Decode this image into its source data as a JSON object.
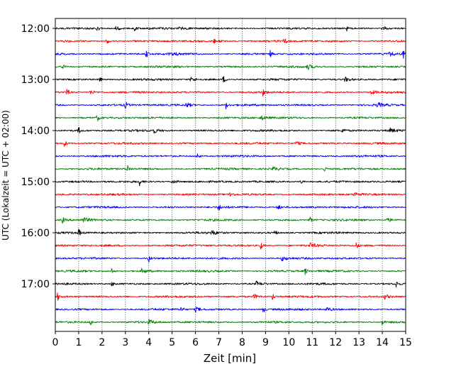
{
  "chart_data": {
    "type": "line",
    "xlabel": "Zeit  [min]",
    "ylabel": "UTC (Lokalzeit = UTC + 02:00)",
    "xlim": [
      0,
      15
    ],
    "x_ticks": [
      "0",
      "1",
      "2",
      "3",
      "4",
      "5",
      "6",
      "7",
      "8",
      "9",
      "10",
      "11",
      "12",
      "13",
      "14",
      "15"
    ],
    "y_ticks": [
      {
        "label": "12:00",
        "row": 0
      },
      {
        "label": "13:00",
        "row": 4
      },
      {
        "label": "14:00",
        "row": 8
      },
      {
        "label": "15:00",
        "row": 12
      },
      {
        "label": "16:00",
        "row": 16
      },
      {
        "label": "17:00",
        "row": 20
      }
    ],
    "grid": "vertical dotted",
    "row_colors": [
      "#000000",
      "#ff0000",
      "#0000ff",
      "#008000"
    ],
    "rows": [
      {
        "start": "12:00",
        "events": [
          1.8,
          2.6,
          3.4,
          5.3,
          12.5,
          14.0
        ]
      },
      {
        "start": "12:15",
        "events": [
          2.2,
          6.8,
          9.8
        ]
      },
      {
        "start": "12:30",
        "events": [
          3.9,
          4.9,
          9.2,
          14.3,
          14.9
        ]
      },
      {
        "start": "12:45",
        "events": [
          0.3,
          10.8
        ]
      },
      {
        "start": "13:00",
        "events": [
          1.9,
          5.8,
          7.2,
          12.4
        ]
      },
      {
        "start": "13:15",
        "events": [
          0.5,
          1.5,
          8.9,
          13.5
        ]
      },
      {
        "start": "13:30",
        "events": [
          3.0,
          5.6,
          7.3,
          13.8
        ]
      },
      {
        "start": "13:45",
        "events": [
          1.8,
          8.8
        ]
      },
      {
        "start": "14:00",
        "events": [
          1.0,
          4.2,
          12.3,
          14.3
        ]
      },
      {
        "start": "14:15",
        "events": [
          0.4,
          10.3
        ]
      },
      {
        "start": "14:30",
        "events": [
          6.1
        ]
      },
      {
        "start": "14:45",
        "events": [
          3.1,
          9.3,
          11.5
        ]
      },
      {
        "start": "15:00",
        "events": [
          3.6,
          5.0,
          10.5
        ]
      },
      {
        "start": "15:15",
        "events": [
          7.5,
          12.8
        ]
      },
      {
        "start": "15:30",
        "events": [
          7.0,
          9.5
        ]
      },
      {
        "start": "15:45",
        "events": [
          0.3,
          1.2,
          10.9,
          14.2
        ]
      },
      {
        "start": "16:00",
        "events": [
          1.0,
          6.7,
          9.4
        ]
      },
      {
        "start": "16:15",
        "events": [
          8.8,
          10.9,
          12.9
        ]
      },
      {
        "start": "16:30",
        "events": [
          4.0,
          9.7
        ]
      },
      {
        "start": "16:45",
        "events": [
          2.4,
          3.7,
          10.7
        ]
      },
      {
        "start": "17:00",
        "events": [
          2.4,
          8.6,
          14.6
        ]
      },
      {
        "start": "17:15",
        "events": [
          0.1,
          8.5,
          9.3,
          14.1
        ]
      },
      {
        "start": "17:30",
        "events": [
          5.4,
          6.0,
          8.9,
          11.6
        ]
      },
      {
        "start": "17:45",
        "events": [
          1.5,
          4.0,
          14.0
        ]
      }
    ]
  }
}
